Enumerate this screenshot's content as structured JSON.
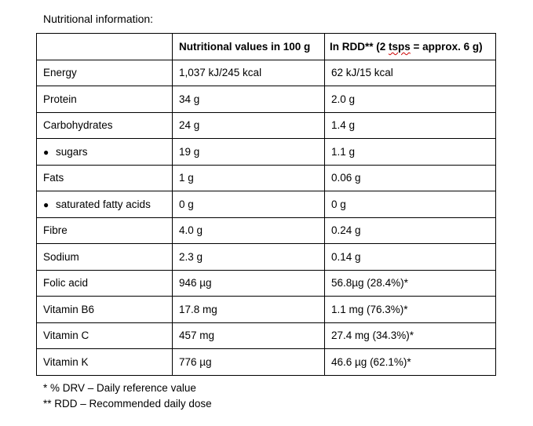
{
  "title": "Nutritional information:",
  "table": {
    "header": {
      "col1": "",
      "col2": "Nutritional values in 100 g",
      "col3_prefix": "In RDD** (2 ",
      "col3_wavy": "tsps",
      "col3_suffix": " = approx. 6 g)"
    },
    "rows": [
      {
        "label": "Energy",
        "per100g": "1,037 kJ/245 kcal",
        "rdd": "62 kJ/15 kcal"
      },
      {
        "label": "Protein",
        "per100g": "34 g",
        "rdd": "2.0 g"
      },
      {
        "label": "Carbohydrates",
        "per100g": "24 g",
        "rdd": "1.4 g"
      },
      {
        "label": "sugars",
        "per100g": "19 g",
        "rdd": "1.1 g"
      },
      {
        "label": "Fats",
        "per100g": "1 g",
        "rdd": "0.06 g"
      },
      {
        "label": "saturated fatty acids",
        "per100g": "0 g",
        "rdd": "0 g"
      },
      {
        "label": "Fibre",
        "per100g": "4.0 g",
        "rdd": "0.24 g"
      },
      {
        "label": "Sodium",
        "per100g": "2.3 g",
        "rdd": "0.14 g"
      },
      {
        "label": "Folic acid",
        "per100g": "946 µg",
        "rdd": "56.8µg (28.4%)*"
      },
      {
        "label": "Vitamin B6",
        "per100g": "17.8 mg",
        "rdd": "1.1 mg (76.3%)*"
      },
      {
        "label": "Vitamin C",
        "per100g": "457 mg",
        "rdd": "27.4 mg (34.3%)*"
      },
      {
        "label": "Vitamin K",
        "per100g": "776 µg",
        "rdd": "46.6 µg (62.1%)*"
      }
    ]
  },
  "footnotes": {
    "drv": "* % DRV – Daily reference value",
    "rdd": "** RDD – Recommended daily dose"
  }
}
